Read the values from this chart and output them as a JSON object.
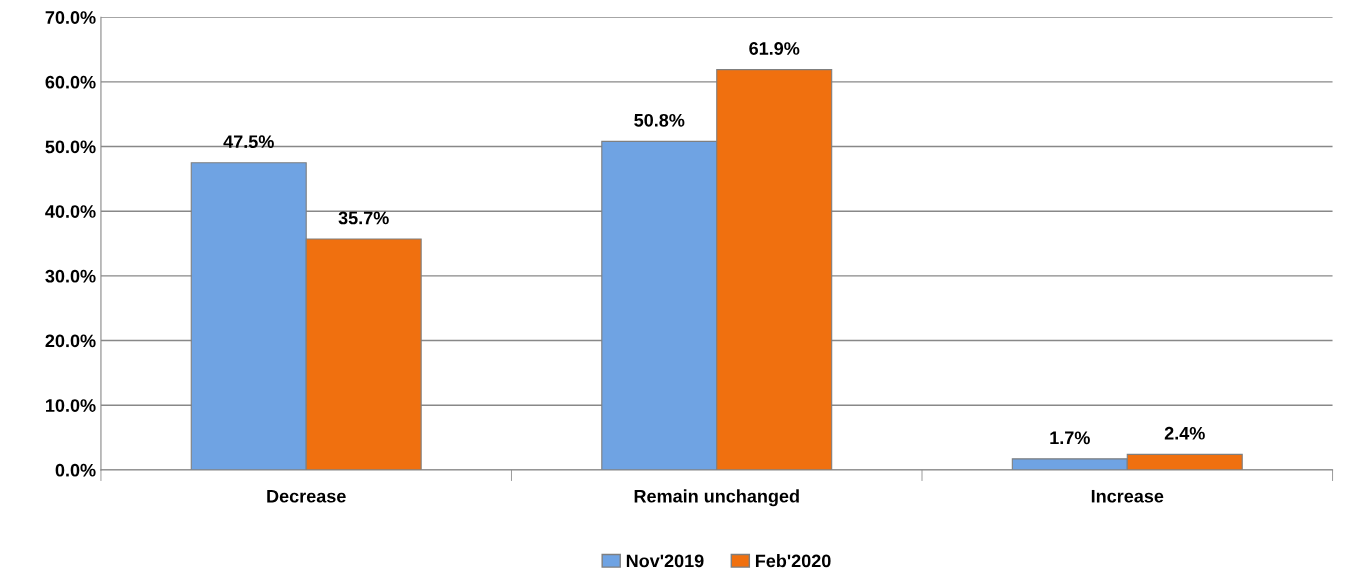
{
  "chart_data": {
    "type": "bar",
    "categories": [
      "Decrease",
      "Remain unchanged",
      "Increase"
    ],
    "series": [
      {
        "name": "Nov'2019",
        "color": "#6fa3e3",
        "values": [
          47.5,
          50.8,
          1.7
        ],
        "value_labels": [
          "47.5%",
          "50.8%",
          "1.7%"
        ]
      },
      {
        "name": "Feb'2020",
        "color": "#f0700f",
        "values": [
          35.7,
          61.9,
          2.4
        ],
        "value_labels": [
          "35.7%",
          "61.9%",
          "2.4%"
        ]
      }
    ],
    "ylim": [
      0,
      70
    ],
    "yticks": [
      {
        "value": 0,
        "label": "0.0%"
      },
      {
        "value": 10,
        "label": "10.0%"
      },
      {
        "value": 20,
        "label": "20.0%"
      },
      {
        "value": 30,
        "label": "30.0%"
      },
      {
        "value": 40,
        "label": "40.0%"
      },
      {
        "value": 50,
        "label": "50.0%"
      },
      {
        "value": 60,
        "label": "60.0%"
      },
      {
        "value": 70,
        "label": "70.0%"
      }
    ],
    "grid": "y",
    "legend": "bottom"
  }
}
